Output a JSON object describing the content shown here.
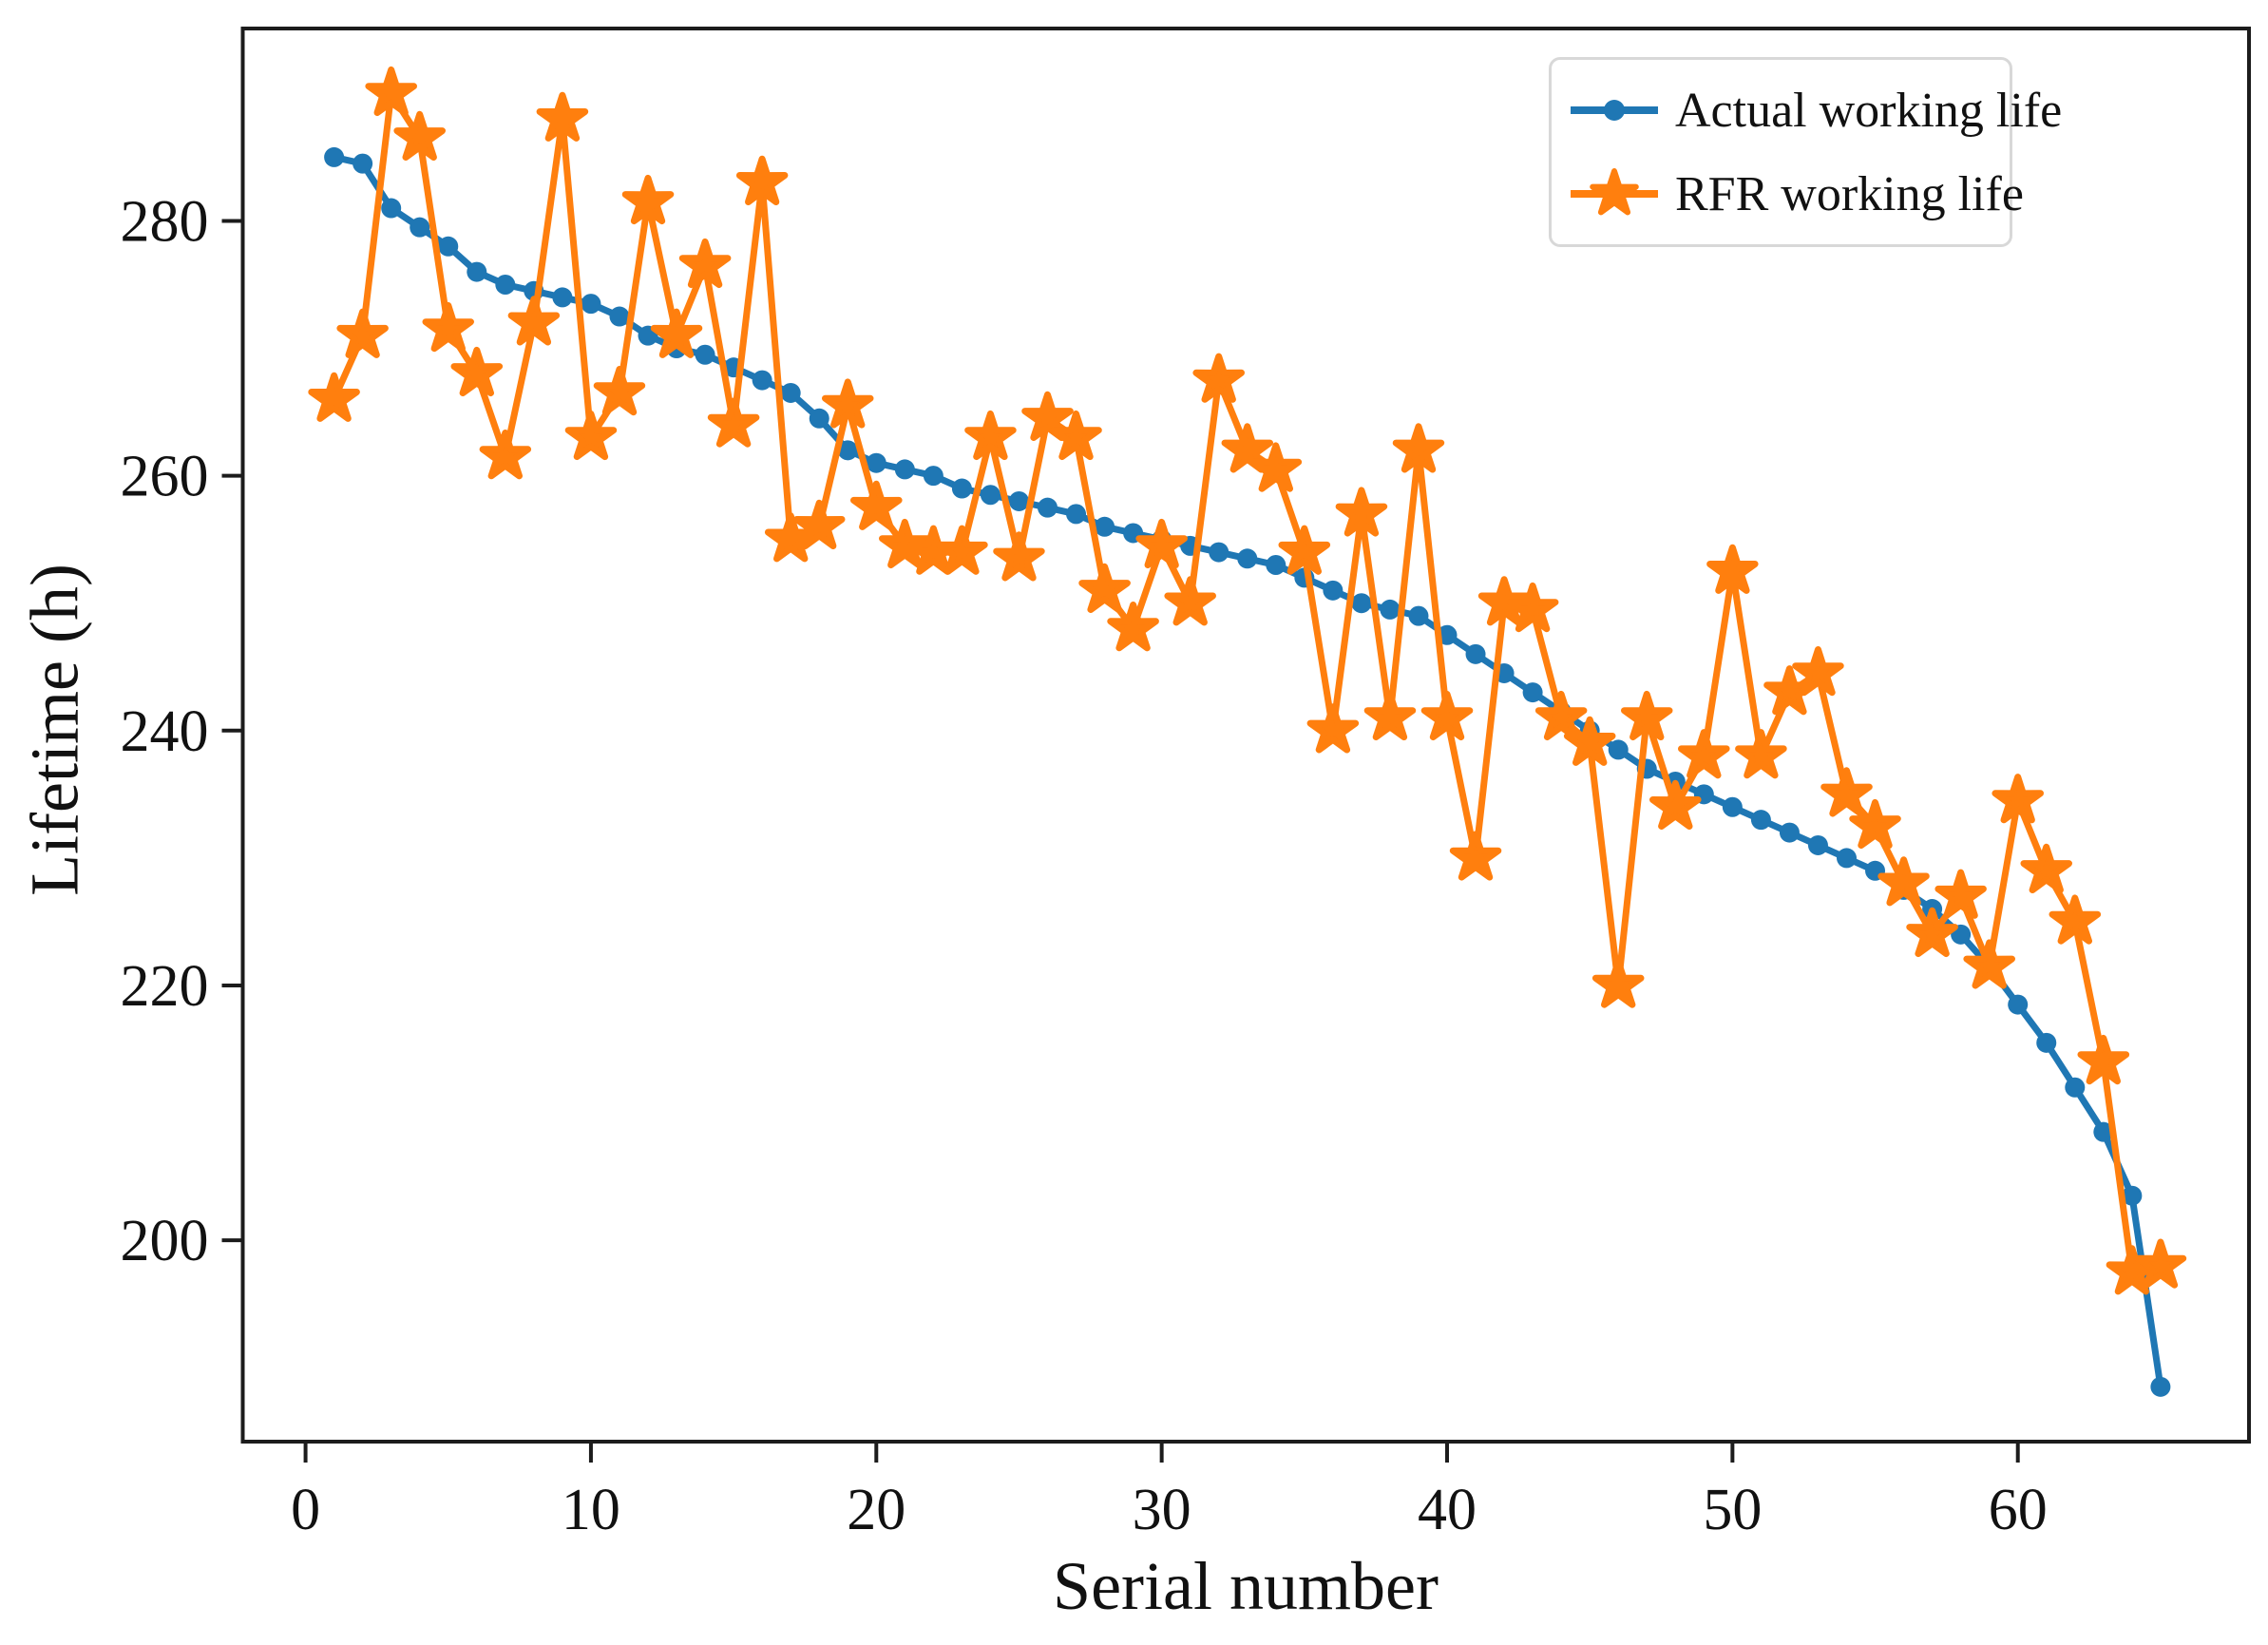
{
  "chart_data": {
    "type": "line",
    "title": "",
    "xlabel": "Serial number",
    "ylabel": "Lifetime (h)",
    "x_ticks": [
      0,
      10,
      20,
      30,
      40,
      50,
      60
    ],
    "y_ticks": [
      200,
      220,
      240,
      260,
      280
    ],
    "xlim": [
      -2.2,
      68.1
    ],
    "ylim": [
      184.2,
      295.1
    ],
    "grid": false,
    "legend_position": "upper right",
    "x": [
      1,
      2,
      3,
      4,
      5,
      6,
      7,
      8,
      9,
      10,
      11,
      12,
      13,
      14,
      15,
      16,
      17,
      18,
      19,
      20,
      21,
      22,
      23,
      24,
      25,
      26,
      27,
      28,
      29,
      30,
      31,
      32,
      33,
      34,
      35,
      36,
      37,
      38,
      39,
      40,
      41,
      42,
      43,
      44,
      45,
      46,
      47,
      48,
      49,
      50,
      51,
      52,
      53,
      54,
      55,
      56,
      57,
      58,
      59,
      60,
      61,
      62,
      63,
      64,
      65
    ],
    "series": [
      {
        "name": "Actual working life",
        "color": "#1f77b4",
        "marker": "circle",
        "values": [
          285,
          284.5,
          281,
          279.5,
          278,
          276,
          275,
          274.5,
          274,
          273.5,
          272.5,
          271,
          270,
          269.5,
          268.5,
          267.5,
          266.5,
          264.5,
          262,
          261,
          260.5,
          260,
          259,
          258.5,
          258,
          257.5,
          257,
          256,
          255.5,
          255,
          254.5,
          254,
          253.5,
          253,
          252,
          251,
          250,
          249.5,
          249,
          247.5,
          246,
          244.5,
          243,
          241.5,
          240,
          238.5,
          237,
          236,
          235,
          234,
          233,
          232,
          231,
          230,
          229,
          227.5,
          226,
          224,
          221.5,
          218.5,
          215.5,
          212,
          208.5,
          203.5,
          188.5
        ]
      },
      {
        "name": "RFR working life",
        "color": "#ff7f0e",
        "marker": "star",
        "values": [
          266,
          271,
          290,
          286.5,
          271.5,
          268,
          261.5,
          272,
          288,
          263,
          266.5,
          281.5,
          271,
          276.5,
          264,
          283,
          255,
          256,
          265.5,
          257.5,
          254.5,
          254,
          254,
          263,
          253.5,
          264.5,
          263,
          251,
          248,
          254.5,
          250,
          267.5,
          262,
          260.5,
          254,
          240,
          257,
          241,
          262,
          241,
          230,
          250,
          249.5,
          241,
          239,
          220,
          241,
          234,
          238,
          252.5,
          238,
          243,
          244.5,
          235,
          232.5,
          228,
          224,
          227,
          221.5,
          234.5,
          229,
          225,
          214,
          197.5,
          198
        ]
      }
    ]
  },
  "legend": {
    "items": [
      {
        "label": "Actual working life",
        "icon": "blue-line-circle-marker"
      },
      {
        "label": "RFR working life",
        "icon": "orange-line-star-marker"
      }
    ]
  },
  "style": {
    "spine_color": "#1c1c1c",
    "tick_label_size": 62,
    "blue": "#1f77b4",
    "orange": "#ff7f0e"
  }
}
